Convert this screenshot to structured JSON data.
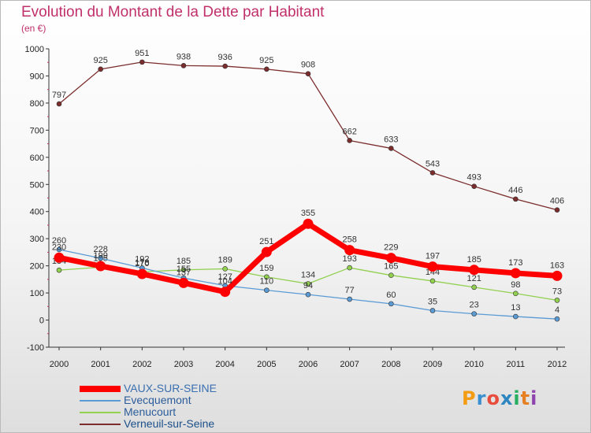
{
  "title": "Evolution du Montant de la Dette par Habitant",
  "subtitle": "(en €)",
  "logo": {
    "text": "Proxiti",
    "colors": [
      "#f39c12",
      "#3a8fd0",
      "#e74c3c",
      "#2e86c1",
      "#27ae60",
      "#e67e22",
      "#8e44ad"
    ]
  },
  "chart_data": {
    "type": "line",
    "title": "Evolution du Montant de la Dette par Habitant",
    "ylabel": "(en €)",
    "xlabel": "",
    "x": [
      "2000",
      "2001",
      "2002",
      "2003",
      "2004",
      "2005",
      "2006",
      "2007",
      "2008",
      "2009",
      "2010",
      "2011",
      "2012"
    ],
    "ylim": [
      -100,
      1000
    ],
    "yticks": [
      -100,
      0,
      100,
      200,
      300,
      400,
      500,
      600,
      700,
      800,
      900,
      1000
    ],
    "grid": false,
    "legend_position": "bottom-left",
    "series": [
      {
        "name": "VAUX-SUR-SEINE",
        "color": "#ff0000",
        "values": [
          230,
          199,
          170,
          137,
          104,
          251,
          355,
          258,
          229,
          197,
          185,
          173,
          163
        ]
      },
      {
        "name": "Evecquemont",
        "color": "#5b9bd5",
        "values": [
          260,
          228,
          192,
          155,
          127,
          110,
          94,
          77,
          60,
          35,
          23,
          13,
          4
        ]
      },
      {
        "name": "Menucourt",
        "color": "#92d050",
        "values": [
          184,
          195,
          178,
          185,
          189,
          159,
          134,
          193,
          165,
          144,
          121,
          98,
          73
        ]
      },
      {
        "name": "Verneuil-sur-Seine",
        "color": "#7b2c2c",
        "values": [
          797,
          925,
          951,
          938,
          936,
          925,
          908,
          662,
          633,
          543,
          493,
          446,
          406
        ]
      }
    ]
  }
}
